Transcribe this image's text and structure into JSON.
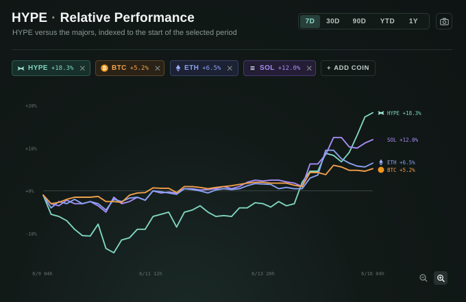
{
  "header": {
    "title": "HYPE",
    "title_sep": "·",
    "title_suffix": "Relative Performance",
    "subtitle": "HYPE versus the majors, indexed to the start of the selected period"
  },
  "ranges": [
    {
      "label": "7D",
      "active": true
    },
    {
      "label": "30D",
      "active": false
    },
    {
      "label": "90D",
      "active": false
    },
    {
      "label": "YTD",
      "active": false
    },
    {
      "label": "1Y",
      "active": false
    }
  ],
  "camera_icon": "camera-icon",
  "coins": [
    {
      "symbol": "HYPE",
      "change": "+18.3%",
      "color": "#7fd6bf",
      "icon": "hype-logo-icon",
      "bg": "#17302a",
      "border": "#2f5a4f"
    },
    {
      "symbol": "BTC",
      "change": "+5.2%",
      "color": "#f2a04a",
      "icon": "btc-logo-icon",
      "bg": "#2a2216",
      "border": "#5e4626"
    },
    {
      "symbol": "ETH",
      "change": "+6.5%",
      "color": "#8aa2f2",
      "icon": "eth-logo-icon",
      "bg": "#1c2133",
      "border": "#37426a"
    },
    {
      "symbol": "SOL",
      "change": "+12.0%",
      "color": "#a78cf7",
      "icon": "sol-logo-icon",
      "bg": "#241d36",
      "border": "#463a70"
    }
  ],
  "add_coin_label": "ADD COIN",
  "add_coin_prefix": "+",
  "chart_data": {
    "type": "line",
    "x_tick_labels": [
      "6/9 04h",
      "6/11 12h",
      "6/13 20h",
      "6/16 04h"
    ],
    "y_tick_labels": [
      "+20%",
      "+10%",
      "+0%",
      "-10%"
    ],
    "ylim": [
      -19,
      22
    ],
    "grid": false,
    "baseline": 0,
    "legend": "end-of-line labels",
    "series": [
      {
        "name": "HYPE",
        "label": "HYPE +18.3%",
        "color": "#7fd6bf",
        "values": [
          -1,
          -5.5,
          -6,
          -7,
          -9,
          -10.5,
          -10.6,
          -7.8,
          -13.5,
          -14.5,
          -11.5,
          -11,
          -9,
          -9,
          -6,
          -5.5,
          -5,
          -8.5,
          -5,
          -4.5,
          -3.5,
          -5,
          -6,
          -5.8,
          -6,
          -4,
          -4,
          -2.8,
          -3,
          -3.8,
          -2.5,
          -3.5,
          -3,
          2,
          4.6,
          4.6,
          8.8,
          8.3,
          6.8,
          9,
          13,
          17.3,
          18.3
        ]
      },
      {
        "name": "SOL",
        "label": "SOL +12.0%",
        "color": "#a78cf7",
        "values": [
          -1,
          -3,
          -3.5,
          -2.2,
          -3,
          -3,
          -2.5,
          -3.5,
          -5,
          -1.5,
          -3,
          -2.5,
          -1.5,
          -2.2,
          0,
          -0.5,
          -0.3,
          -0.5,
          0.5,
          0.5,
          0.2,
          0.3,
          0.5,
          1,
          0.5,
          1,
          2,
          2.5,
          2.3,
          2.5,
          2.5,
          2.1,
          1.8,
          1,
          6.3,
          6.3,
          8.5,
          12.5,
          12.5,
          10.3,
          10,
          11.2,
          12
        ]
      },
      {
        "name": "ETH",
        "label": "ETH +6.5%",
        "color": "#8aa2f2",
        "values": [
          -1,
          -4,
          -2.5,
          -3,
          -2,
          -3,
          -2.5,
          -3,
          -4.5,
          -2,
          -2.5,
          -1.7,
          -1.5,
          -2.2,
          0,
          -0.2,
          -0.5,
          -0.8,
          0.5,
          0.3,
          0,
          -0.5,
          0.2,
          0.5,
          0.3,
          0.5,
          1.2,
          1.7,
          1.6,
          1.5,
          0.5,
          0.8,
          0.5,
          0.5,
          3,
          3.7,
          9.5,
          9.5,
          7.5,
          6.5,
          5.8,
          5.6,
          6.5
        ]
      },
      {
        "name": "BTC",
        "label": "BTC +5.2%",
        "color": "#f2a04a",
        "values": [
          -1,
          -3,
          -2.7,
          -2,
          -1.5,
          -1.5,
          -1.5,
          -1.3,
          -2.5,
          -2.5,
          -2.7,
          -1,
          -0.5,
          -0.4,
          0.7,
          0.6,
          0.6,
          -0.4,
          1,
          1,
          0.8,
          0.5,
          0.8,
          1,
          1.2,
          1.5,
          1.8,
          2,
          2,
          1.8,
          1.8,
          1.8,
          1.3,
          1,
          4.3,
          4.3,
          3.8,
          6,
          5.6,
          4.8,
          4.8,
          4.6,
          5.2
        ]
      }
    ]
  }
}
